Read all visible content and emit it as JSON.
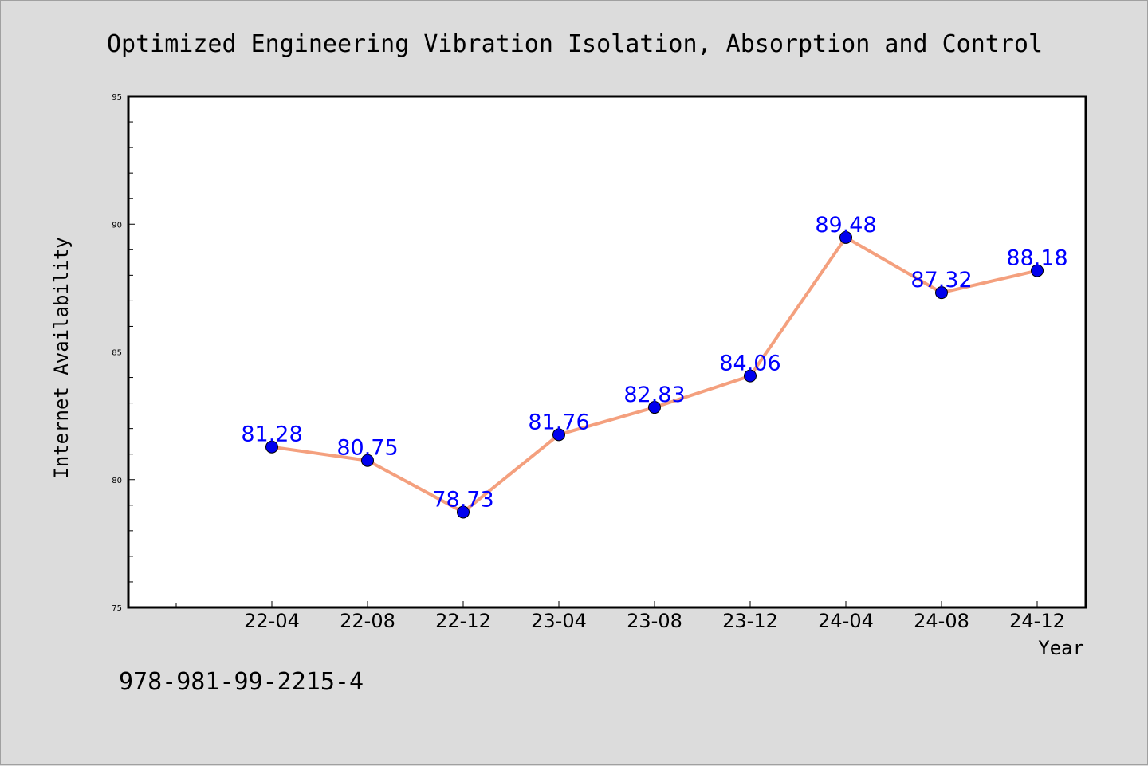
{
  "chart_data": {
    "type": "line",
    "title": "Optimized Engineering Vibration Isolation, Absorption and Control",
    "xlabel": "Year",
    "ylabel": "Internet Availability",
    "categories": [
      "22-04",
      "22-08",
      "22-12",
      "23-04",
      "23-08",
      "23-12",
      "24-04",
      "24-08",
      "24-12"
    ],
    "x_ticks": [
      "22-04",
      "22-08",
      "22-12",
      "23-04",
      "23-08",
      "23-12",
      "24-04",
      "24-08",
      "24-12"
    ],
    "values": [
      81.28,
      80.75,
      78.73,
      81.76,
      82.83,
      84.06,
      89.48,
      87.32,
      88.18
    ],
    "value_labels": [
      "81.28",
      "80.75",
      "78.73",
      "81.76",
      "82.83",
      "84.06",
      "89.48",
      "87.32",
      "88.18"
    ],
    "ylim": [
      75,
      95
    ],
    "y_ticks": [
      75,
      80,
      85,
      90,
      95
    ],
    "grid": false,
    "legend": "none",
    "colors": {
      "line": "#f4a07e",
      "marker": "#0000ee",
      "data_label": "#0000ff"
    }
  },
  "footer_text": "978-981-99-2215-4"
}
